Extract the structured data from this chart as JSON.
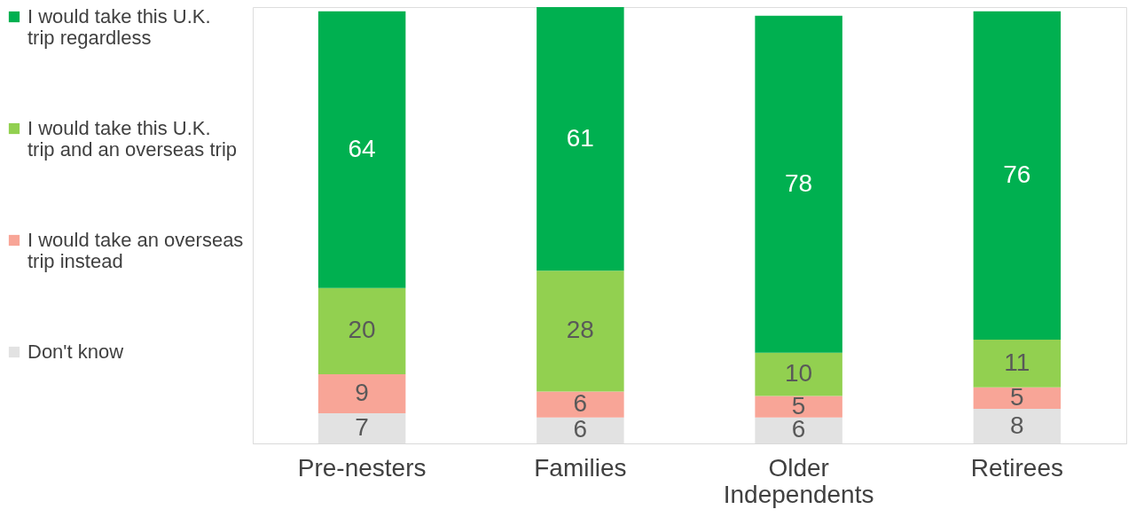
{
  "chart_data": {
    "type": "bar",
    "stacked": true,
    "data_labels": true,
    "legend": "left",
    "grid": false,
    "tick_labels": "x",
    "categories": [
      "Pre-nesters",
      "Families",
      "Older Independents",
      "Retirees"
    ],
    "series": [
      {
        "name": "Don't know",
        "color": "#e2e2e2",
        "values": [
          7,
          6,
          6,
          8
        ]
      },
      {
        "name": "I would take an overseas trip instead",
        "color": "#f8a597",
        "values": [
          9,
          6,
          5,
          5
        ]
      },
      {
        "name": "I would take this U.K. trip and an overseas trip",
        "color": "#92d050",
        "values": [
          20,
          28,
          10,
          11
        ]
      },
      {
        "name": "I would take this U.K. trip regardless",
        "color": "#00b050",
        "values": [
          64,
          61,
          78,
          76
        ]
      }
    ]
  }
}
